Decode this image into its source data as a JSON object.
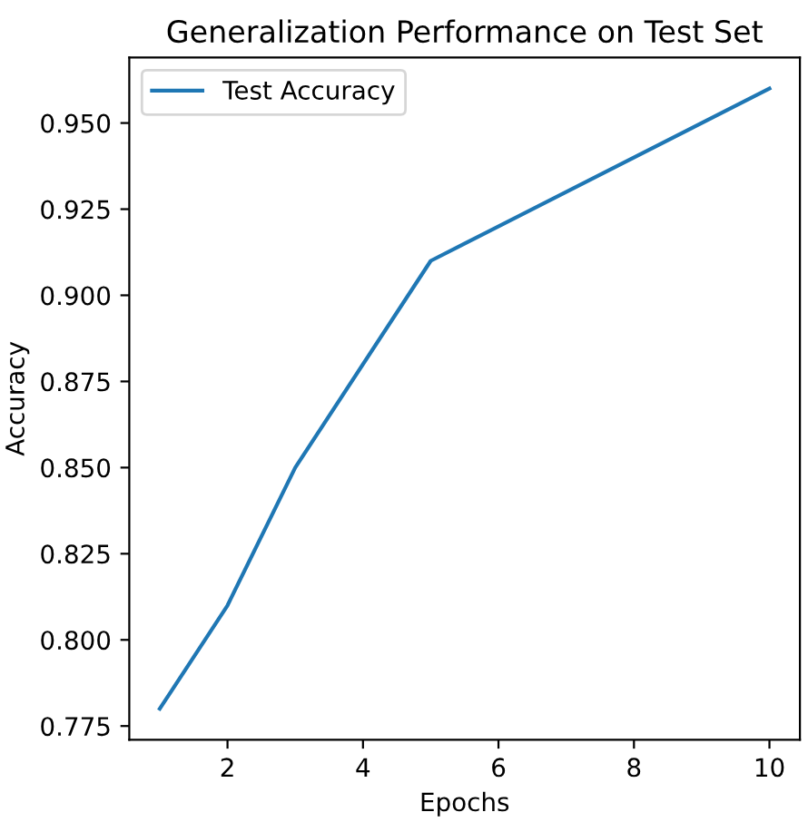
{
  "chart_data": {
    "type": "line",
    "title": "Generalization Performance on Test Set",
    "xlabel": "Epochs",
    "ylabel": "Accuracy",
    "x": [
      1,
      2,
      3,
      5,
      10
    ],
    "series": [
      {
        "name": "Test Accuracy",
        "color": "#1f77b4",
        "values": [
          0.78,
          0.81,
          0.85,
          0.91,
          0.96
        ]
      }
    ],
    "xlim": [
      0.55,
      10.45
    ],
    "xticks": [
      2,
      4,
      6,
      8,
      10
    ],
    "ylim": [
      0.771,
      0.969
    ],
    "yticks": [
      0.775,
      {
        "value": 0.8,
        "label": "0.800"
      },
      0.825,
      {
        "value": 0.85,
        "label": "0.850"
      },
      0.875,
      {
        "value": 0.9,
        "label": "0.900"
      },
      0.925,
      {
        "value": 0.95,
        "label": "0.950"
      }
    ],
    "legend": "top left",
    "grid": false,
    "marker": "none",
    "line_style": "solid"
  }
}
